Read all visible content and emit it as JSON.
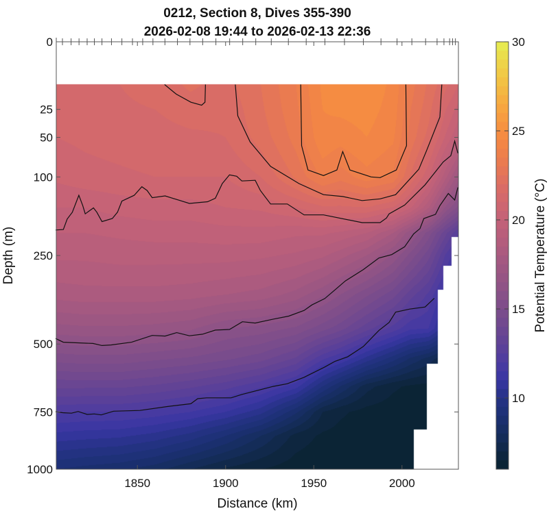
{
  "chart_data": {
    "type": "heatmap",
    "subtype": "filled-contour section",
    "title": [
      "0212, Section 8, Dives 355-390",
      "2026-02-08 19:44 to 2026-02-13 22:36"
    ],
    "xlabel": "Distance (km)",
    "ylabel": "Depth (m)",
    "xlim": [
      1804,
      2032
    ],
    "ylim": [
      0,
      1000
    ],
    "y_scale": "sqrt",
    "y_reversed": true,
    "x_ticks": [
      1850,
      1900,
      1950,
      2000
    ],
    "y_ticks": [
      0,
      25,
      50,
      100,
      250,
      500,
      750,
      1000
    ],
    "colorbar": {
      "label": "Potential Temperature (°C)",
      "clim": [
        6,
        30
      ],
      "ticks": [
        10,
        15,
        20,
        25,
        30
      ],
      "colormap": "thermal",
      "level_step": 0.5
    },
    "colormap_stops": [
      [
        6,
        "#0a2330"
      ],
      [
        7,
        "#0f2744"
      ],
      [
        8,
        "#152d5e"
      ],
      [
        9,
        "#1c3073"
      ],
      [
        10,
        "#253286"
      ],
      [
        11,
        "#3836a2"
      ],
      [
        12,
        "#4c3ba0"
      ],
      [
        13,
        "#5e4197"
      ],
      [
        14,
        "#6e4790"
      ],
      [
        15,
        "#7c4d8b"
      ],
      [
        16,
        "#8b5287"
      ],
      [
        17,
        "#995683"
      ],
      [
        18,
        "#a85a80"
      ],
      [
        19,
        "#b65e7c"
      ],
      [
        20,
        "#c36278"
      ],
      [
        21,
        "#d0676f"
      ],
      [
        22,
        "#dc6e63"
      ],
      [
        23,
        "#e87853"
      ],
      [
        24,
        "#f08248"
      ],
      [
        25,
        "#f68f40"
      ],
      [
        26,
        "#f7a040"
      ],
      [
        27,
        "#f5b341"
      ],
      [
        28,
        "#f2c544"
      ],
      [
        29,
        "#ecd84a"
      ],
      [
        30,
        "#e5ef52"
      ]
    ],
    "dive_locations_km": [
      1807.5,
      1812.4,
      1816.9,
      1821.5,
      1825.6,
      1829.9,
      1835.3,
      1841.2,
      1847.2,
      1853.0,
      1858.8,
      1865.6,
      1872.7,
      1879.8,
      1887.0,
      1894.5,
      1902.3,
      1909.7,
      1917.1,
      1925.9,
      1935.6,
      1945.7,
      1956.3,
      1967.4,
      1978.1,
      1988.1,
      1997.2,
      2005.6,
      2013.4,
      2019.9,
      2023.8,
      2027.0,
      2028.7,
      2030.3
    ],
    "data_top_depth": 10,
    "max_depth_profile": [
      {
        "to_km": 2006.8,
        "max_depth": 1000
      },
      {
        "to_km": 2014.2,
        "max_depth": 822
      },
      {
        "to_km": 2020.2,
        "max_depth": 567
      },
      {
        "to_km": 2023.3,
        "max_depth": 337
      },
      {
        "to_km": 2028.0,
        "max_depth": 275
      },
      {
        "to_km": 2033.0,
        "max_depth": 208
      }
    ],
    "grid": {
      "distance_km": [
        1804,
        1820,
        1840,
        1860,
        1880,
        1900,
        1920,
        1940,
        1955,
        1965,
        1980,
        1995,
        2005,
        2015,
        2025,
        2032
      ],
      "depth_m": [
        10,
        25,
        50,
        100,
        150,
        200,
        250,
        350,
        450,
        550,
        650,
        750,
        850,
        1000
      ],
      "temperature_c": [
        [
          21.3,
          21.4,
          21.5,
          21.7,
          22.1,
          21.8,
          22.5,
          23.5,
          24.6,
          24.8,
          24.8,
          24.4,
          23.2,
          22.4,
          21.6,
          21.0
        ],
        [
          21.2,
          21.3,
          21.4,
          21.5,
          21.7,
          21.6,
          22.4,
          23.4,
          24.5,
          24.6,
          24.7,
          24.3,
          23.0,
          22.2,
          21.0,
          20.3
        ],
        [
          21.0,
          21.1,
          21.2,
          21.3,
          21.4,
          21.5,
          22.2,
          23.2,
          24.4,
          24.2,
          24.5,
          24.1,
          22.8,
          21.8,
          20.4,
          19.5
        ],
        [
          20.6,
          20.8,
          20.9,
          21.0,
          21.0,
          21.0,
          21.5,
          22.6,
          23.6,
          23.2,
          23.8,
          23.4,
          21.9,
          20.6,
          18.6,
          17.2
        ],
        [
          20.0,
          20.0,
          20.2,
          20.3,
          20.3,
          20.5,
          20.6,
          21.0,
          21.4,
          21.4,
          21.5,
          21.0,
          20.1,
          18.6,
          16.4,
          15.4
        ],
        [
          19.5,
          19.5,
          19.6,
          19.7,
          19.7,
          19.8,
          19.8,
          19.6,
          19.6,
          19.4,
          19.0,
          18.0,
          16.6,
          15.3,
          13.6,
          12.5
        ],
        [
          19.1,
          19.1,
          19.2,
          19.2,
          19.2,
          19.2,
          19.1,
          18.9,
          18.6,
          18.2,
          17.5,
          16.4,
          15.3,
          14.2,
          12.4,
          11.5
        ],
        [
          18.2,
          18.3,
          18.3,
          18.3,
          18.2,
          18.0,
          17.8,
          17.3,
          16.6,
          16.0,
          15.1,
          14.2,
          13.2,
          12.4,
          11.0,
          10.5
        ],
        [
          16.8,
          16.9,
          16.9,
          16.8,
          16.6,
          16.0,
          15.8,
          15.4,
          14.7,
          14.2,
          13.2,
          12.3,
          11.6,
          11.5,
          10.0,
          10.0
        ],
        [
          15.2,
          15.3,
          15.3,
          15.1,
          14.9,
          14.6,
          14.2,
          13.4,
          12.1,
          11.5,
          10.3,
          9.2,
          8.4,
          7.8,
          7.0,
          7.0
        ],
        [
          13.6,
          13.6,
          13.6,
          13.4,
          13.1,
          12.7,
          12.1,
          11.2,
          9.5,
          8.5,
          7.2,
          6.6,
          6.4,
          6.3,
          6.0,
          6.0
        ],
        [
          12.1,
          12.0,
          12.0,
          11.8,
          11.5,
          11.0,
          10.2,
          8.6,
          7.0,
          6.6,
          6.3,
          6.2,
          6.1,
          6.1,
          6.0,
          6.0
        ],
        [
          10.8,
          10.7,
          10.6,
          10.3,
          9.8,
          9.0,
          8.0,
          6.8,
          6.4,
          6.3,
          6.2,
          6.1,
          6.1,
          6.0,
          6.0,
          6.0
        ],
        [
          9.0,
          8.8,
          8.6,
          8.2,
          7.5,
          6.9,
          6.5,
          6.2,
          6.1,
          6.1,
          6.0,
          6.0,
          6.0,
          6.0,
          6.0,
          6.0
        ]
      ]
    },
    "contours": [
      {
        "level": 24,
        "points": [
          [
            1942.6,
            10
          ],
          [
            1943.1,
            59
          ],
          [
            1946.7,
            90
          ],
          [
            1955.5,
            98
          ],
          [
            1963.1,
            90
          ],
          [
            1966.4,
            66
          ],
          [
            1970.5,
            90
          ],
          [
            1982.5,
            100
          ],
          [
            1987.6,
            101
          ],
          [
            1996.8,
            90
          ],
          [
            2002.6,
            59
          ],
          [
            2002.2,
            10
          ]
        ]
      },
      {
        "level": 22,
        "points": [
          [
            1905.5,
            10
          ],
          [
            1906.9,
            30
          ],
          [
            1913.9,
            55
          ],
          [
            1925.5,
            85
          ],
          [
            1941.6,
            110
          ],
          [
            1955.5,
            128
          ],
          [
            1966.4,
            131
          ],
          [
            1977.4,
            138
          ],
          [
            1987.6,
            135
          ],
          [
            1996.4,
            128
          ],
          [
            2009.5,
            89
          ],
          [
            2013.9,
            65
          ],
          [
            2021.5,
            31
          ],
          [
            2022.6,
            10
          ]
        ]
      },
      {
        "level": 22,
        "points": [
          [
            1865.4,
            10
          ],
          [
            1872.0,
            15
          ],
          [
            1880.3,
            20
          ],
          [
            1886.4,
            22
          ],
          [
            1888.3,
            20
          ],
          [
            1888.6,
            10
          ]
        ]
      },
      {
        "level": 20,
        "points": [
          [
            1803.6,
            194
          ],
          [
            1808.0,
            193
          ],
          [
            1810.2,
            172
          ],
          [
            1813.1,
            159
          ],
          [
            1816.8,
            129
          ],
          [
            1819.0,
            147
          ],
          [
            1820.4,
            162
          ],
          [
            1825.1,
            151
          ],
          [
            1827.0,
            159
          ],
          [
            1829.9,
            177
          ],
          [
            1835.8,
            171
          ],
          [
            1838.7,
            159
          ],
          [
            1841.2,
            139
          ],
          [
            1848.2,
            129
          ],
          [
            1852.5,
            115
          ],
          [
            1855.5,
            121
          ],
          [
            1858.4,
            133
          ],
          [
            1865.7,
            130
          ],
          [
            1879.5,
            143
          ],
          [
            1889.8,
            140
          ],
          [
            1894.2,
            134
          ],
          [
            1898.1,
            110
          ],
          [
            1902.2,
            97
          ],
          [
            1906.3,
            99
          ],
          [
            1909.2,
            106
          ],
          [
            1916.8,
            105
          ],
          [
            1919.7,
            121
          ],
          [
            1925.5,
            144
          ],
          [
            1935.0,
            144
          ],
          [
            1944.5,
            164
          ],
          [
            1955.5,
            164
          ],
          [
            1977.4,
            179
          ],
          [
            1987.6,
            179
          ],
          [
            1991.2,
            170
          ],
          [
            1992.7,
            162
          ],
          [
            2001.5,
            146
          ],
          [
            2013.1,
            112
          ],
          [
            2023.4,
            79
          ],
          [
            2027.7,
            71
          ],
          [
            2029.9,
            54
          ],
          [
            2031.7,
            68
          ]
        ]
      },
      {
        "level": 16,
        "points": [
          [
            1803.6,
            482
          ],
          [
            1808.0,
            494
          ],
          [
            1824.8,
            498
          ],
          [
            1829.9,
            505
          ],
          [
            1835.0,
            503
          ],
          [
            1846.7,
            494
          ],
          [
            1858.4,
            472
          ],
          [
            1865.7,
            474
          ],
          [
            1872.3,
            463
          ],
          [
            1879.5,
            473
          ],
          [
            1886.9,
            468
          ],
          [
            1894.2,
            455
          ],
          [
            1902.2,
            453
          ],
          [
            1909.5,
            429
          ],
          [
            1916.8,
            433
          ],
          [
            1927.0,
            421
          ],
          [
            1935.8,
            412
          ],
          [
            1944.5,
            395
          ],
          [
            1948.9,
            379
          ],
          [
            1956.2,
            361
          ],
          [
            1962.0,
            337
          ],
          [
            1967.9,
            313
          ],
          [
            1978.1,
            284
          ],
          [
            1986.9,
            256
          ],
          [
            1994.2,
            248
          ],
          [
            2001.5,
            230
          ],
          [
            2006.6,
            202
          ],
          [
            2010.2,
            191
          ],
          [
            2012.4,
            171
          ],
          [
            2019.0,
            163
          ],
          [
            2021.5,
            147
          ],
          [
            2026.3,
            126
          ],
          [
            2029.9,
            137
          ],
          [
            2031.7,
            116
          ]
        ]
      },
      {
        "level": 12,
        "points": [
          [
            1803.6,
            749
          ],
          [
            1807.6,
            753
          ],
          [
            1812.6,
            755
          ],
          [
            1816.4,
            748
          ],
          [
            1821.5,
            760
          ],
          [
            1825.6,
            758
          ],
          [
            1829.5,
            762
          ],
          [
            1836.5,
            747
          ],
          [
            1851.4,
            744
          ],
          [
            1867.3,
            728
          ],
          [
            1880.3,
            717
          ],
          [
            1884.2,
            697
          ],
          [
            1889.2,
            694
          ],
          [
            1903.1,
            694
          ],
          [
            1909.1,
            681
          ],
          [
            1927.0,
            650
          ],
          [
            1935.0,
            640
          ],
          [
            1944.5,
            616
          ],
          [
            1956.2,
            579
          ],
          [
            1962.0,
            559
          ],
          [
            1969.3,
            543
          ],
          [
            1978.1,
            508
          ],
          [
            1986.9,
            456
          ],
          [
            1992.7,
            431
          ],
          [
            1996.4,
            400
          ],
          [
            2004.4,
            391
          ],
          [
            2013.1,
            385
          ],
          [
            2018.3,
            360
          ]
        ]
      }
    ]
  }
}
